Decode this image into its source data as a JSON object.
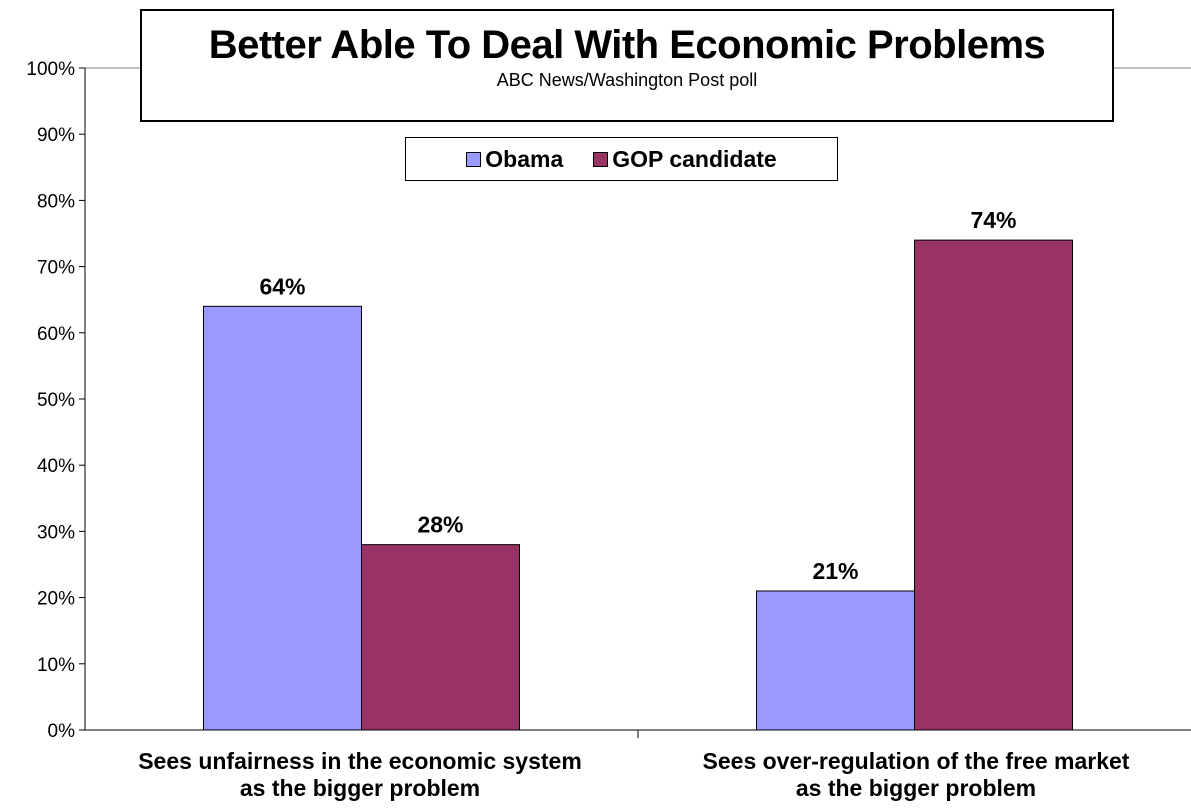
{
  "chart_data": {
    "type": "bar",
    "title": "Better Able To Deal With Economic Problems",
    "subtitle": "ABC News/Washington Post poll",
    "categories": [
      [
        "Sees unfairness in the economic system",
        "as the bigger problem"
      ],
      [
        "Sees over-regulation of the free market",
        "as the bigger problem"
      ]
    ],
    "series": [
      {
        "name": "Obama",
        "color": "#9999ff",
        "values": [
          64,
          21
        ],
        "labels": [
          "64%",
          "21%"
        ]
      },
      {
        "name": "GOP candidate",
        "color": "#993366",
        "values": [
          28,
          74
        ],
        "labels": [
          "28%",
          "74%"
        ]
      }
    ],
    "ylim": [
      0,
      100
    ],
    "yticks": [
      "0%",
      "10%",
      "20%",
      "30%",
      "40%",
      "50%",
      "60%",
      "70%",
      "80%",
      "90%",
      "100%"
    ],
    "legend_position": "top-center",
    "grid": false
  }
}
